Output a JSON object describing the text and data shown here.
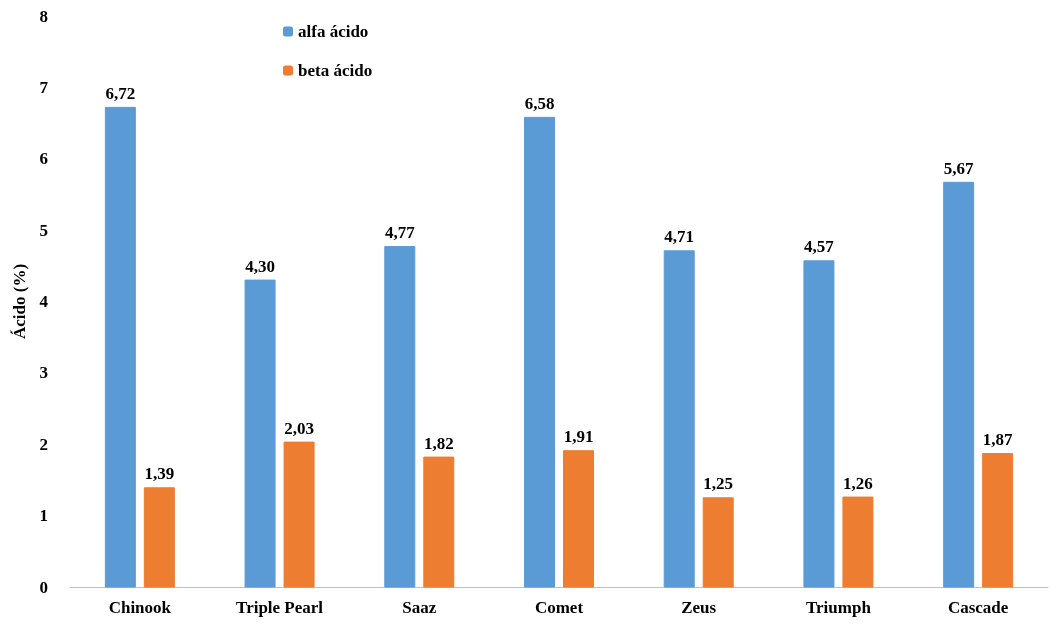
{
  "chart_data": {
    "type": "bar",
    "ylabel": "Ácido (%)",
    "categories": [
      "Chinook",
      "Triple Pearl",
      "Saaz",
      "Comet",
      "Zeus",
      "Triumph",
      "Cascade"
    ],
    "series": [
      {
        "name": "alfa ácido",
        "color": "#5b9bd5",
        "values": [
          6.72,
          4.3,
          4.77,
          6.58,
          4.71,
          4.57,
          5.67
        ],
        "value_labels": [
          "6,72",
          "4,30",
          "4,77",
          "6,58",
          "4,71",
          "4,57",
          "5,67"
        ]
      },
      {
        "name": "beta ácido",
        "color": "#ed7d31",
        "values": [
          1.39,
          2.03,
          1.82,
          1.91,
          1.25,
          1.26,
          1.87
        ],
        "value_labels": [
          "1,39",
          "2,03",
          "1,82",
          "1,91",
          "1,25",
          "1,26",
          "1,87"
        ]
      }
    ],
    "ylim": [
      0,
      8
    ],
    "yticks": [
      0,
      1,
      2,
      3,
      4,
      5,
      6,
      7,
      8
    ],
    "grid": false,
    "legend": "top"
  }
}
